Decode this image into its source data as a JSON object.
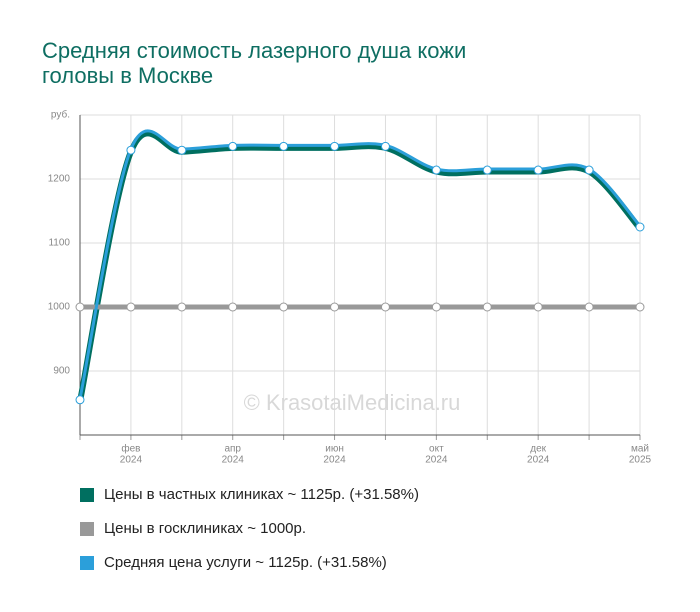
{
  "chart_data": {
    "type": "line",
    "title": [
      "Средняя стоимость лазерного душа кожи",
      "головы в Москве"
    ],
    "categories": [
      null,
      "фев",
      null,
      "апр",
      null,
      "июн",
      null,
      "окт",
      null,
      "дек",
      null,
      "май"
    ],
    "category_years": [
      null,
      "2024",
      null,
      "2024",
      null,
      "2024",
      null,
      "2024",
      null,
      "2024",
      null,
      "2025"
    ],
    "series": [
      {
        "name": "Цены в частных клиниках ~ 1125р. (+31.58%)",
        "color": "#006f60",
        "values": [
          855,
          1245,
          1245,
          1251,
          1251,
          1251,
          1251,
          1214,
          1214,
          1214,
          1214,
          1125
        ]
      },
      {
        "name": "Цены в госклиниках ~ 1000р.",
        "color": "#999999",
        "values": [
          1000,
          1000,
          1000,
          1000,
          1000,
          1000,
          1000,
          1000,
          1000,
          1000,
          1000,
          1000
        ]
      },
      {
        "name": "Средняя цена услуги ~ 1125р. (+31.58%)",
        "color": "#2b9fda",
        "values": [
          855,
          1245,
          1245,
          1251,
          1251,
          1251,
          1251,
          1214,
          1214,
          1214,
          1214,
          1125
        ]
      }
    ],
    "ylim": [
      800,
      1300
    ],
    "yticks": [
      900,
      1000,
      1100,
      1200,
      {
        "value": 1300,
        "label": "руб."
      }
    ],
    "grid": true,
    "watermark": "© KrasotaiMedicina.ru"
  }
}
